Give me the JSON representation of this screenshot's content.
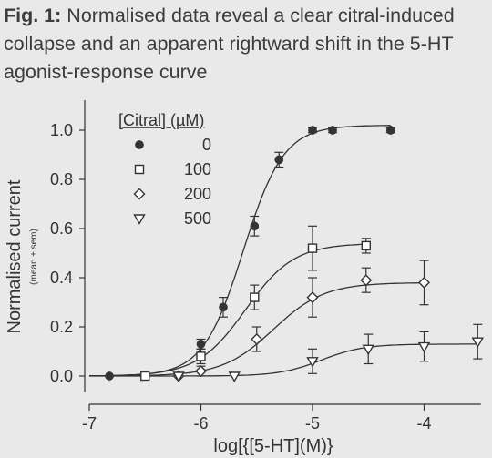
{
  "caption": {
    "label": "Fig. 1:",
    "text": " Normalised data reveal a clear citral-induced collapse and an apparent rightward shift in the 5-HT agonist-response curve"
  },
  "colors": {
    "background": "#e9e9e9",
    "ink": "#333333",
    "open_fill": "#ffffff"
  },
  "chart_data": {
    "type": "scatter",
    "xlabel": "log[{[5-HT](M)}",
    "ylabel": "Normalised current",
    "ylabel_sub": "(mean ± sem)",
    "xlim": [
      -7,
      -3.5
    ],
    "ylim": [
      -0.05,
      1.1
    ],
    "x_ticks": [
      -7,
      -6,
      -5,
      -4
    ],
    "x_tick_labels": [
      "-7",
      "-6",
      "-5",
      "-4"
    ],
    "y_ticks": [
      0,
      0.2,
      0.4,
      0.6,
      0.8,
      1.0
    ],
    "y_tick_labels": [
      "0.0",
      "0.2",
      "0.4",
      "0.6",
      "0.8",
      "1.0"
    ],
    "legend_title": "[Citral] (µM)",
    "legend_position": "top-left",
    "series": [
      {
        "name": "0",
        "marker": "filled-circle",
        "x": [
          -6.82,
          -6.0,
          -5.8,
          -5.52,
          -5.3,
          -5.0,
          -4.82,
          -4.3
        ],
        "y": [
          0.0,
          0.13,
          0.28,
          0.61,
          0.88,
          1.0,
          1.0,
          1.0
        ],
        "err": [
          0.0,
          0.02,
          0.04,
          0.04,
          0.03,
          0.01,
          0.01,
          0.01
        ],
        "fit": {
          "top": 1.02,
          "log_ec50": -5.62,
          "hill": 2.4
        }
      },
      {
        "name": "100",
        "marker": "open-square",
        "x": [
          -6.5,
          -6.0,
          -5.52,
          -5.0,
          -4.52
        ],
        "y": [
          0.0,
          0.08,
          0.32,
          0.52,
          0.53
        ],
        "err": [
          0.0,
          0.03,
          0.05,
          0.09,
          0.03
        ],
        "fit": {
          "top": 0.54,
          "log_ec50": -5.6,
          "hill": 2.0
        }
      },
      {
        "name": "200",
        "marker": "open-diamond",
        "x": [
          -6.2,
          -6.0,
          -5.5,
          -5.0,
          -4.52,
          -4.0
        ],
        "y": [
          0.0,
          0.02,
          0.15,
          0.32,
          0.39,
          0.38
        ],
        "err": [
          0.0,
          0.02,
          0.05,
          0.08,
          0.05,
          0.09
        ],
        "fit": {
          "top": 0.38,
          "log_ec50": -5.35,
          "hill": 1.9
        }
      },
      {
        "name": "500",
        "marker": "open-triangle-down",
        "x": [
          -6.2,
          -5.7,
          -5.0,
          -4.5,
          -4.0,
          -3.52
        ],
        "y": [
          0.0,
          0.0,
          0.06,
          0.11,
          0.12,
          0.14
        ],
        "err": [
          0.0,
          0.0,
          0.05,
          0.06,
          0.06,
          0.07
        ],
        "fit": {
          "top": 0.13,
          "log_ec50": -4.92,
          "hill": 2.3
        }
      }
    ]
  }
}
